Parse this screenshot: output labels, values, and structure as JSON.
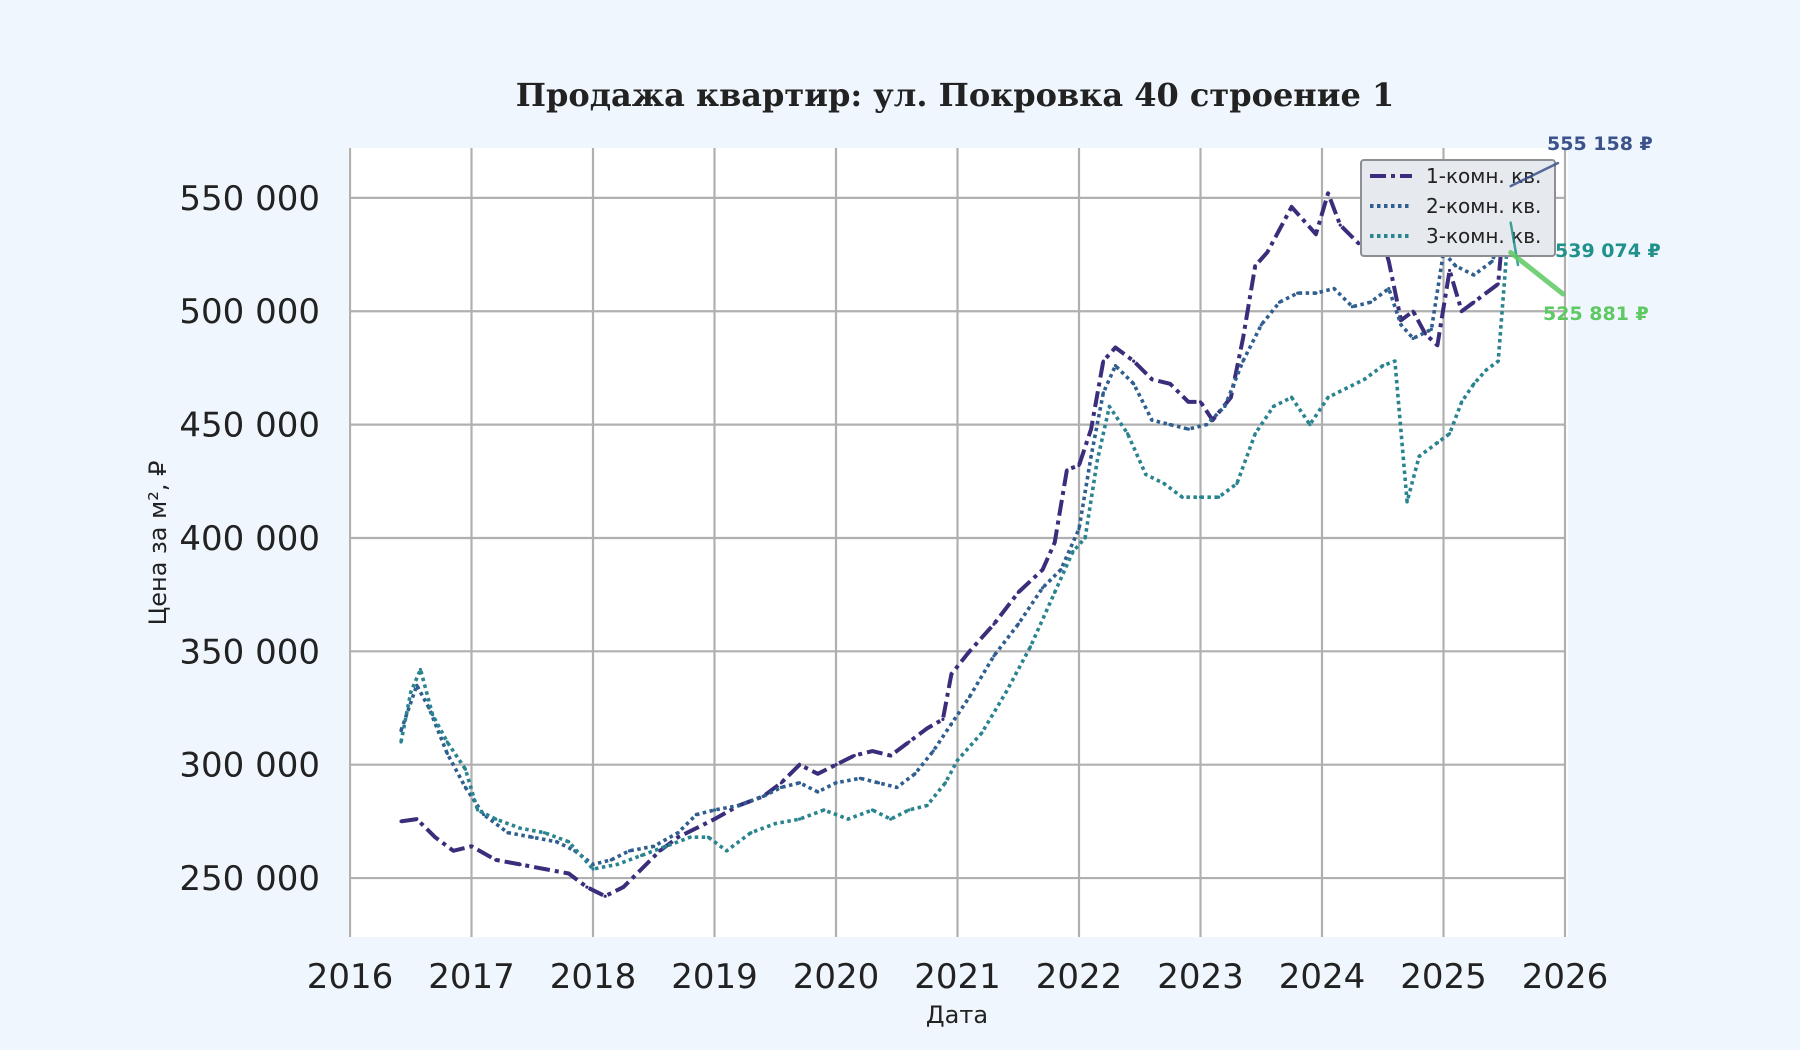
{
  "chart_data": {
    "type": "line",
    "title": "Продажа квартир: ул. Покровка 40 строение 1",
    "xlabel": "Дата",
    "ylabel": "Цена за м², ₽",
    "xlim": [
      2016,
      2026
    ],
    "ylim": [
      224000,
      572000
    ],
    "x_ticks": [
      2016,
      2017,
      2018,
      2019,
      2020,
      2021,
      2022,
      2023,
      2024,
      2025,
      2026
    ],
    "x_tick_labels": [
      "2016",
      "2017",
      "2018",
      "2019",
      "2020",
      "2021",
      "2022",
      "2023",
      "2024",
      "2025",
      "2026"
    ],
    "y_ticks": [
      250000,
      300000,
      350000,
      400000,
      450000,
      500000,
      550000
    ],
    "y_tick_labels": [
      "250 000",
      "300 000",
      "350 000",
      "400 000",
      "450 000",
      "500 000",
      "550 000"
    ],
    "grid": true,
    "legend_position": "top-right",
    "colors": {
      "background": "#eff6fe",
      "plot_background": "#ffffff",
      "grid": "#b0b0b0"
    },
    "series": [
      {
        "name": "1-комн. кв.",
        "color": "#3b2d7b",
        "dash": "dashdot",
        "x": [
          2016.42,
          2016.55,
          2016.7,
          2016.85,
          2017.0,
          2017.2,
          2017.4,
          2017.6,
          2017.8,
          2017.95,
          2018.1,
          2018.25,
          2018.4,
          2018.55,
          2018.7,
          2018.85,
          2019.0,
          2019.2,
          2019.4,
          2019.55,
          2019.7,
          2019.85,
          2020.0,
          2020.15,
          2020.3,
          2020.45,
          2020.6,
          2020.75,
          2020.88,
          2020.95,
          2021.1,
          2021.3,
          2021.5,
          2021.7,
          2021.8,
          2021.9,
          2022.0,
          2022.1,
          2022.2,
          2022.3,
          2022.45,
          2022.6,
          2022.75,
          2022.9,
          2023.0,
          2023.1,
          2023.25,
          2023.35,
          2023.45,
          2023.55,
          2023.65,
          2023.75,
          2023.85,
          2023.95,
          2024.05,
          2024.15,
          2024.3,
          2024.45,
          2024.55,
          2024.65,
          2024.75,
          2024.85,
          2024.95,
          2025.05,
          2025.15,
          2025.25,
          2025.35,
          2025.45,
          2025.52
        ],
        "y": [
          275000,
          276000,
          268000,
          262000,
          264000,
          258000,
          256000,
          254000,
          252000,
          246000,
          242000,
          246000,
          254000,
          262000,
          268000,
          272000,
          276000,
          282000,
          286000,
          292000,
          300000,
          296000,
          300000,
          304000,
          306000,
          304000,
          310000,
          316000,
          320000,
          340000,
          350000,
          362000,
          376000,
          386000,
          398000,
          430000,
          432000,
          448000,
          478000,
          484000,
          478000,
          470000,
          468000,
          460000,
          460000,
          452000,
          462000,
          488000,
          520000,
          526000,
          536000,
          546000,
          540000,
          534000,
          552000,
          538000,
          530000,
          540000,
          522000,
          496000,
          500000,
          490000,
          485000,
          518000,
          500000,
          504000,
          508000,
          512000,
          555158
        ]
      },
      {
        "name": "2-комн. кв.",
        "color": "#2f5e8f",
        "dash": "dotted",
        "x": [
          2016.42,
          2016.55,
          2016.65,
          2016.8,
          2016.95,
          2017.1,
          2017.3,
          2017.5,
          2017.7,
          2017.85,
          2018.0,
          2018.15,
          2018.3,
          2018.5,
          2018.7,
          2018.85,
          2019.0,
          2019.2,
          2019.4,
          2019.55,
          2019.7,
          2019.85,
          2020.0,
          2020.2,
          2020.35,
          2020.5,
          2020.65,
          2020.8,
          2020.95,
          2021.1,
          2021.3,
          2021.5,
          2021.7,
          2021.85,
          2022.0,
          2022.1,
          2022.2,
          2022.3,
          2022.45,
          2022.6,
          2022.75,
          2022.9,
          2023.05,
          2023.2,
          2023.35,
          2023.5,
          2023.65,
          2023.8,
          2023.95,
          2024.1,
          2024.25,
          2024.4,
          2024.55,
          2024.65,
          2024.75,
          2024.9,
          2025.0,
          2025.1,
          2025.25,
          2025.4,
          2025.52
        ],
        "y": [
          315000,
          335000,
          325000,
          305000,
          290000,
          278000,
          270000,
          268000,
          266000,
          262000,
          256000,
          258000,
          262000,
          264000,
          270000,
          278000,
          280000,
          282000,
          286000,
          290000,
          292000,
          288000,
          292000,
          294000,
          292000,
          290000,
          296000,
          306000,
          318000,
          330000,
          348000,
          362000,
          378000,
          386000,
          404000,
          436000,
          464000,
          476000,
          468000,
          452000,
          450000,
          448000,
          450000,
          458000,
          478000,
          494000,
          504000,
          508000,
          508000,
          510000,
          502000,
          504000,
          510000,
          494000,
          488000,
          492000,
          526000,
          520000,
          516000,
          522000,
          539074
        ]
      },
      {
        "name": "3-комн. кв.",
        "color": "#2a8490",
        "dash": "dotted",
        "x": [
          2016.42,
          2016.5,
          2016.58,
          2016.68,
          2016.8,
          2016.95,
          2017.05,
          2017.2,
          2017.4,
          2017.6,
          2017.8,
          2018.0,
          2018.2,
          2018.4,
          2018.6,
          2018.8,
          2018.95,
          2019.1,
          2019.3,
          2019.5,
          2019.7,
          2019.9,
          2020.1,
          2020.3,
          2020.45,
          2020.6,
          2020.75,
          2020.9,
          2021.0,
          2021.2,
          2021.4,
          2021.6,
          2021.8,
          2021.95,
          2022.05,
          2022.15,
          2022.25,
          2022.4,
          2022.55,
          2022.7,
          2022.85,
          2023.0,
          2023.15,
          2023.3,
          2023.45,
          2023.6,
          2023.75,
          2023.9,
          2024.05,
          2024.2,
          2024.35,
          2024.5,
          2024.6,
          2024.7,
          2024.8,
          2024.95,
          2025.05,
          2025.15,
          2025.25,
          2025.35,
          2025.45,
          2025.52
        ],
        "y": [
          310000,
          332000,
          342000,
          322000,
          310000,
          298000,
          280000,
          276000,
          272000,
          270000,
          266000,
          254000,
          256000,
          260000,
          264000,
          268000,
          268000,
          262000,
          270000,
          274000,
          276000,
          280000,
          276000,
          280000,
          276000,
          280000,
          282000,
          292000,
          302000,
          314000,
          332000,
          352000,
          376000,
          394000,
          400000,
          434000,
          458000,
          446000,
          428000,
          424000,
          418000,
          418000,
          418000,
          424000,
          446000,
          458000,
          462000,
          450000,
          462000,
          466000,
          470000,
          476000,
          478000,
          416000,
          436000,
          442000,
          446000,
          460000,
          468000,
          474000,
          478000,
          525881
        ]
      }
    ],
    "annotations": [
      {
        "text": "555 158 ₽",
        "x": 2025.52,
        "y": 555158,
        "color": "#3b528b"
      },
      {
        "text": "539 074 ₽",
        "x": 2025.52,
        "y": 539074,
        "color": "#21918c"
      },
      {
        "text": "525 881 ₽",
        "x": 2025.52,
        "y": 525881,
        "color": "#5ec962"
      }
    ]
  }
}
